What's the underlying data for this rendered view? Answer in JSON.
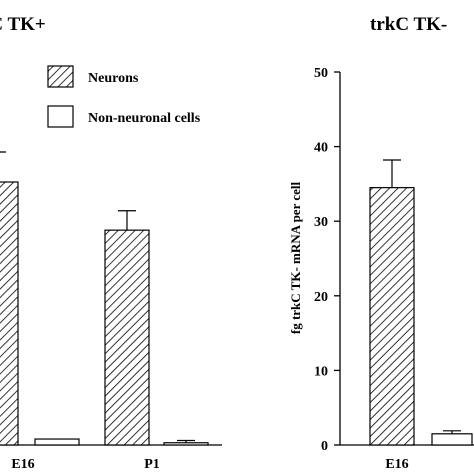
{
  "chart_data": [
    {
      "type": "bar",
      "title": "trkC TK+",
      "categories": [
        "E16",
        "P1"
      ],
      "series": [
        {
          "name": "Neurons",
          "values": [
            null,
            28.8
          ],
          "errors": [
            null,
            2.6
          ]
        },
        {
          "name": "Non-neuronal cells",
          "values": [
            0.8,
            0.3
          ],
          "errors": [
            null,
            0.3
          ]
        }
      ],
      "legend": [
        "Neurons",
        "Non-neuronal cells"
      ],
      "legend_position": "top-center",
      "ylim": [
        0,
        50
      ]
    },
    {
      "type": "bar",
      "title": "trkC TK-",
      "categories": [
        "E16"
      ],
      "series": [
        {
          "name": "Neurons",
          "values": [
            34.5
          ],
          "errors": [
            3.7
          ]
        },
        {
          "name": "Non-neuronal cells",
          "values": [
            1.5
          ],
          "errors": [
            0.4
          ]
        }
      ],
      "ylabel": "fg trkC TK- mRNA per cell",
      "ylim": [
        0,
        50
      ],
      "yticks": [
        0,
        10,
        20,
        30,
        40,
        50
      ]
    }
  ]
}
